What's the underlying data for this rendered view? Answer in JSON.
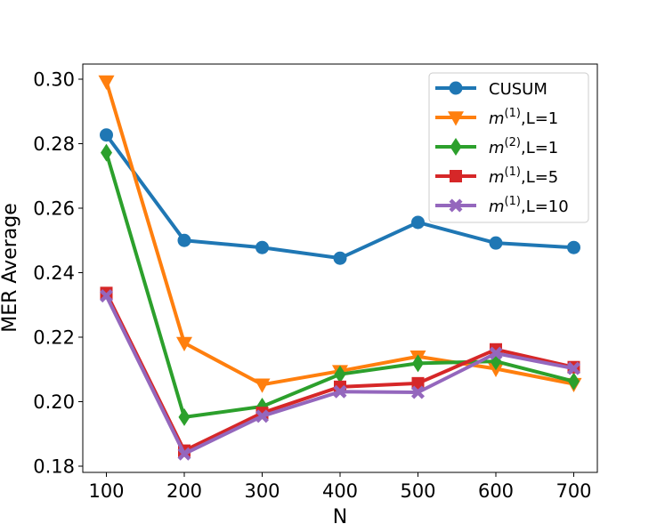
{
  "chart_data": {
    "type": "line",
    "title": "",
    "xlabel": "N",
    "ylabel": "MER Average",
    "x": [
      100,
      200,
      300,
      400,
      500,
      600,
      700
    ],
    "xticks": [
      "100",
      "200",
      "300",
      "400",
      "500",
      "600",
      "700"
    ],
    "yticks": [
      "0.18",
      "0.20",
      "0.22",
      "0.24",
      "0.26",
      "0.28",
      "0.30"
    ],
    "ytick_values": [
      0.18,
      0.2,
      0.22,
      0.24,
      0.26,
      0.28,
      0.3
    ],
    "xlim": [
      70,
      730
    ],
    "ylim": [
      0.1781,
      0.3047
    ],
    "grid": false,
    "legend_position": "top-right",
    "series": [
      {
        "name": "CUSUM",
        "label_main": "CUSUM",
        "label_sup": "",
        "label_tail": "",
        "color": "#1f77b4",
        "marker": "circle",
        "values": [
          0.2827,
          0.25,
          0.2478,
          0.2445,
          0.2556,
          0.2492,
          0.2478
        ]
      },
      {
        "name": "m(1),L=1",
        "label_main": "m",
        "label_sup": "(1)",
        "label_tail": ",L=1",
        "color": "#ff7f0e",
        "marker": "triangle-down",
        "values": [
          0.2993,
          0.2182,
          0.2053,
          0.2095,
          0.214,
          0.2102,
          0.2055
        ]
      },
      {
        "name": "m(2),L=1",
        "label_main": "m",
        "label_sup": "(2)",
        "label_tail": ",L=1",
        "color": "#2ca02c",
        "marker": "diamond",
        "values": [
          0.2772,
          0.1952,
          0.1985,
          0.2085,
          0.2119,
          0.2125,
          0.2063
        ]
      },
      {
        "name": "m(1),L=5",
        "label_main": "m",
        "label_sup": "(1)",
        "label_tail": ",L=5",
        "color": "#d62728",
        "marker": "square",
        "values": [
          0.2337,
          0.1848,
          0.1965,
          0.2046,
          0.2057,
          0.2162,
          0.2107
        ]
      },
      {
        "name": "m(1),L=10",
        "label_main": "m",
        "label_sup": "(1)",
        "label_tail": ",L=10",
        "color": "#9467bd",
        "marker": "x-filled",
        "values": [
          0.2328,
          0.1838,
          0.1955,
          0.2031,
          0.2029,
          0.215,
          0.2103
        ]
      }
    ]
  }
}
